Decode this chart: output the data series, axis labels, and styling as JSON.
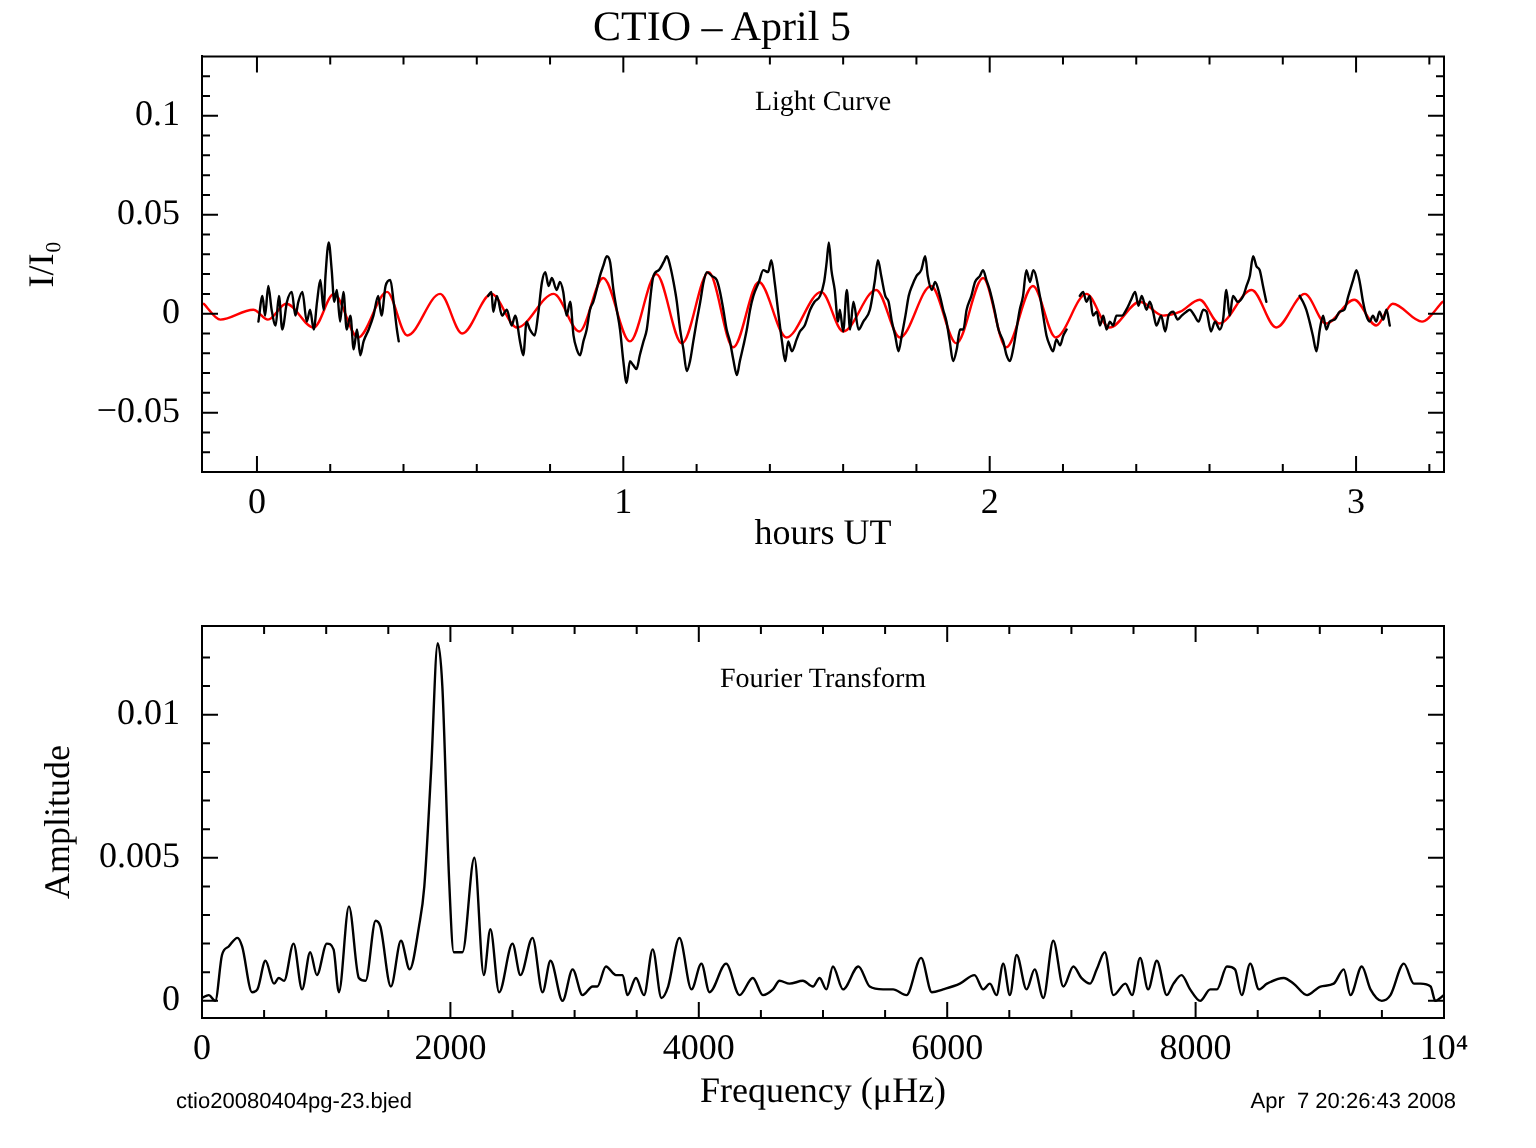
{
  "chart_data": [
    {
      "type": "line",
      "title": "CTIO – April 5",
      "xlabel": "hours UT",
      "ylabel": "I/I₀",
      "annotations": [
        "Light Curve"
      ],
      "xlim": [
        -0.15,
        3.24
      ],
      "ylim": [
        -0.08,
        0.13
      ],
      "xticks": [
        0,
        {
          "value": 0.2,
          "label": null
        },
        {
          "value": 0.4,
          "label": null
        },
        {
          "value": 0.6,
          "label": null
        },
        {
          "value": 0.8,
          "label": null
        },
        1,
        {
          "value": 1.2,
          "label": null
        },
        {
          "value": 1.4,
          "label": null
        },
        {
          "value": 1.6,
          "label": null
        },
        {
          "value": 1.8,
          "label": null
        },
        2,
        {
          "value": 2.2,
          "label": null
        },
        {
          "value": 2.4,
          "label": null
        },
        {
          "value": 2.6,
          "label": null
        },
        {
          "value": 2.8,
          "label": null
        },
        3,
        {
          "value": 3.2,
          "label": null
        }
      ],
      "yticks": [
        {
          "value": -0.07,
          "label": null
        },
        {
          "value": -0.06,
          "label": null
        },
        -0.05,
        {
          "value": -0.04,
          "label": null
        },
        {
          "value": -0.03,
          "label": null
        },
        {
          "value": -0.02,
          "label": null
        },
        {
          "value": -0.01,
          "label": null
        },
        0,
        {
          "value": 0.01,
          "label": null
        },
        {
          "value": 0.02,
          "label": null
        },
        {
          "value": 0.03,
          "label": null
        },
        {
          "value": 0.04,
          "label": null
        },
        0.05,
        {
          "value": 0.06,
          "label": null
        },
        {
          "value": 0.07,
          "label": null
        },
        {
          "value": 0.08,
          "label": null
        },
        {
          "value": 0.09,
          "label": null
        },
        0.1,
        {
          "value": 0.11,
          "label": null
        },
        {
          "value": 0.12,
          "label": null
        }
      ],
      "series": [
        {
          "color": "#000000",
          "x": [
            0.004,
            0.015,
            0.022,
            0.031,
            0.04,
            0.051,
            0.06,
            0.069,
            0.082,
            0.095,
            0.105,
            0.113,
            0.124,
            0.136,
            0.145,
            0.155,
            0.164,
            0.173,
            0.182,
            0.187,
            0.196,
            0.204,
            0.211,
            0.218,
            0.227,
            0.236,
            0.245,
            0.255,
            0.264,
            0.273,
            0.282,
            0.291,
            0.305,
            0.318,
            0.331,
            0.34,
            0.351,
            0.364,
            0.373,
            0.382,
            0.387,
            0.5,
            0.631,
            0.64,
            0.645,
            0.655,
            0.669,
            0.682,
            0.695,
            0.705,
            0.718,
            0.727,
            0.736,
            0.745,
            0.758,
            0.767,
            0.778,
            0.787,
            0.796,
            0.805,
            0.818,
            0.827,
            0.836,
            0.845,
            0.855,
            0.864,
            0.873,
            0.882,
            0.891,
            0.9,
            0.909,
            0.918,
            0.927,
            0.936,
            0.945,
            0.955,
            0.964,
            0.973,
            0.982,
            0.991,
            1.0,
            1.009,
            1.018,
            1.027,
            1.036,
            1.045,
            1.055,
            1.064,
            1.082,
            1.097,
            1.11,
            1.119,
            1.128,
            1.137,
            1.146,
            1.155,
            1.164,
            1.173,
            1.182,
            1.191,
            1.2,
            1.21,
            1.219,
            1.228,
            1.242,
            1.255,
            1.264,
            1.273,
            1.282,
            1.291,
            1.3,
            1.31,
            1.318,
            1.328,
            1.337,
            1.346,
            1.355,
            1.37,
            1.382,
            1.395,
            1.404,
            1.413,
            1.424,
            1.433,
            1.442,
            1.45,
            1.46,
            1.473,
            1.482,
            1.495,
            1.51,
            1.522,
            1.537,
            1.548,
            1.555,
            1.561,
            1.568,
            1.577,
            1.586,
            1.591,
            1.6,
            1.61,
            1.619,
            1.628,
            1.642,
            1.655,
            1.673,
            1.686,
            1.695,
            1.704,
            1.715,
            1.724,
            1.733,
            1.742,
            1.751,
            1.76,
            1.77,
            1.779,
            1.788,
            1.8,
            1.813,
            1.824,
            1.831,
            1.842,
            1.851,
            1.864,
            1.873,
            1.882,
            1.891,
            1.9,
            1.91,
            1.919,
            1.928,
            1.937,
            1.95,
            1.96,
            1.973,
            1.982,
            1.991,
            2.0,
            2.013,
            2.024,
            2.037,
            2.046,
            2.055,
            2.064,
            2.073,
            2.082,
            2.091,
            2.1,
            2.11,
            2.119,
            2.137,
            2.146,
            2.155,
            2.164,
            2.173,
            2.182,
            2.192,
            2.201,
            2.21,
            2.228,
            2.246,
            2.255,
            2.264,
            2.273,
            2.282,
            2.292,
            2.301,
            2.31,
            2.319,
            2.328,
            2.337,
            2.346,
            2.361,
            2.373,
            2.386,
            2.397,
            2.406,
            2.415,
            2.428,
            2.437,
            2.446,
            2.455,
            2.468,
            2.479,
            2.488,
            2.501,
            2.513,
            2.524,
            2.537,
            2.546,
            2.559,
            2.57,
            2.583,
            2.592,
            2.604,
            2.615,
            2.628,
            2.637,
            2.646,
            2.655,
            2.664,
            2.677,
            2.692,
            2.701,
            2.71,
            2.719,
            2.728,
            2.737,
            2.746,
            2.755,
            2.8,
            2.846,
            2.855,
            2.864,
            2.873,
            2.882,
            2.892,
            2.901,
            2.91,
            2.919,
            2.928,
            2.942,
            2.955,
            2.968,
            2.979,
            2.992,
            3.001,
            3.01,
            3.019,
            3.028,
            3.037,
            3.046,
            3.055,
            3.064,
            3.074,
            3.083,
            3.092
          ],
          "values": [
            -0.004,
            0.009,
            -0.001,
            0.014,
            0.002,
            -0.006,
            0.009,
            -0.008,
            0.006,
            0.011,
            -0.001,
            0.006,
            0.011,
            -0.004,
            0.002,
            -0.008,
            0.006,
            0.017,
            0.002,
            0.019,
            0.036,
            0.022,
            0.006,
            0.012,
            -0.004,
            0.011,
            -0.008,
            -0.001,
            -0.018,
            -0.008,
            -0.021,
            -0.014,
            -0.008,
            -0.001,
            0.009,
            -0.001,
            0.014,
            0.017,
            0.006,
            -0.008,
            -0.014,
            null,
            0.009,
            0.011,
            0.001,
            0.009,
            -0.001,
            0.002,
            -0.006,
            -0.001,
            -0.014,
            -0.021,
            -0.004,
            -0.008,
            -0.011,
            -0.001,
            0.016,
            0.021,
            0.014,
            0.018,
            0.012,
            0.016,
            0.011,
            -0.001,
            0.006,
            -0.011,
            -0.018,
            -0.021,
            -0.014,
            -0.008,
            0.002,
            0.006,
            0.012,
            0.019,
            0.024,
            0.029,
            0.026,
            0.012,
            0.002,
            -0.008,
            -0.024,
            -0.035,
            -0.024,
            -0.026,
            -0.028,
            -0.021,
            -0.014,
            -0.008,
            0.019,
            0.022,
            0.026,
            0.029,
            0.024,
            0.016,
            0.006,
            -0.008,
            -0.018,
            -0.029,
            -0.024,
            -0.014,
            -0.004,
            0.006,
            0.016,
            0.021,
            0.019,
            0.017,
            0.011,
            0.002,
            -0.008,
            -0.014,
            -0.023,
            -0.031,
            -0.024,
            -0.016,
            -0.008,
            0.002,
            0.009,
            0.016,
            0.022,
            0.021,
            0.027,
            0.016,
            -0.001,
            -0.014,
            -0.024,
            -0.014,
            -0.019,
            -0.013,
            -0.009,
            -0.006,
            0.002,
            0.006,
            0.009,
            0.016,
            0.026,
            0.036,
            0.022,
            0.012,
            -0.004,
            0.002,
            -0.009,
            0.012,
            -0.008,
            0.006,
            -0.008,
            -0.004,
            0.002,
            0.016,
            0.027,
            0.019,
            0.009,
            0.006,
            -0.004,
            -0.011,
            -0.019,
            -0.011,
            -0.001,
            0.009,
            0.014,
            0.019,
            0.022,
            0.029,
            0.019,
            0.012,
            0.016,
            0.009,
            0.002,
            -0.004,
            -0.014,
            -0.024,
            -0.018,
            -0.008,
            -0.008,
            0.002,
            0.009,
            0.016,
            0.019,
            0.022,
            0.017,
            0.012,
            0.002,
            -0.008,
            -0.014,
            -0.021,
            -0.024,
            -0.018,
            -0.008,
            0.002,
            0.009,
            0.022,
            0.016,
            0.022,
            0.009,
            -0.001,
            -0.011,
            -0.016,
            -0.019,
            -0.013,
            -0.016,
            -0.011,
            -0.008,
            null,
            0.009,
            0.011,
            0.006,
            0.009,
            -0.001,
            0.001,
            -0.006,
            -0.001,
            -0.008,
            -0.004,
            -0.006,
            -0.001,
            -0.001,
            0.002,
            0.007,
            0.011,
            0.004,
            0.009,
            0.002,
            0.006,
            0.001,
            -0.006,
            -0.001,
            -0.009,
            -0.001,
            0.001,
            -0.003,
            -0.001,
            0.001,
            0.002,
            -0.001,
            -0.004,
            0.002,
            0.001,
            -0.009,
            -0.004,
            -0.008,
            -0.003,
            0.012,
            -0.001,
            0.009,
            0.006,
            0.009,
            0.014,
            0.019,
            0.029,
            0.024,
            0.022,
            0.014,
            0.006,
            null,
            0.009,
            0.006,
            0.002,
            -0.004,
            -0.011,
            -0.019,
            -0.008,
            -0.001,
            -0.008,
            -0.004,
            -0.003,
            0.001,
            0.002,
            0.009,
            0.017,
            0.022,
            0.016,
            0.006,
            -0.001,
            -0.004,
            -0.001,
            -0.004,
            0.001,
            -0.003,
            0.002,
            -0.006
          ]
        },
        {
          "color": "#ff0000",
          "x": [
            -0.145,
            -0.1,
            -0.01,
            0.03,
            0.08,
            0.155,
            0.21,
            0.276,
            0.355,
            0.41,
            0.5,
            0.56,
            0.64,
            0.71,
            0.81,
            0.88,
            0.945,
            1.018,
            1.09,
            1.16,
            1.233,
            1.3,
            1.37,
            1.445,
            1.54,
            1.6,
            1.69,
            1.755,
            1.84,
            1.909,
            1.982,
            2.045,
            2.118,
            2.18,
            2.264,
            2.327,
            2.41,
            2.473,
            2.52,
            2.573,
            2.627,
            2.715,
            2.782,
            2.86,
            2.918,
            2.995,
            3.055,
            3.1,
            3.18,
            3.236
          ],
          "values": [
            0.005,
            -0.003,
            0.002,
            -0.003,
            0.005,
            -0.007,
            0.01,
            -0.012,
            0.011,
            -0.011,
            0.01,
            -0.01,
            0.01,
            -0.007,
            0.01,
            -0.009,
            0.018,
            -0.014,
            0.02,
            -0.015,
            0.021,
            -0.017,
            0.016,
            -0.012,
            0.011,
            -0.009,
            0.012,
            -0.012,
            0.014,
            -0.015,
            0.018,
            -0.017,
            0.014,
            -0.012,
            0.01,
            -0.007,
            0.006,
            -0.001,
            0.001,
            0.007,
            -0.005,
            0.012,
            -0.007,
            0.01,
            -0.005,
            0.007,
            -0.006,
            0.005,
            -0.004,
            0.006
          ]
        }
      ]
    },
    {
      "type": "line",
      "xlabel": "Frequency (μHz)",
      "ylabel": "Amplitude",
      "annotations": [
        "Fourier Transform",
        "ctio20080404pg-23.bjed",
        "Apr  7 20:26:43 2008"
      ],
      "xlim": [
        0,
        10000
      ],
      "ylim": [
        -0.0006,
        0.0131
      ],
      "xticks": [
        0,
        {
          "value": 500,
          "label": null
        },
        {
          "value": 1000,
          "label": null
        },
        {
          "value": 1500,
          "label": null
        },
        2000,
        {
          "value": 2500,
          "label": null
        },
        {
          "value": 3000,
          "label": null
        },
        {
          "value": 3500,
          "label": null
        },
        4000,
        {
          "value": 4500,
          "label": null
        },
        {
          "value": 5000,
          "label": null
        },
        {
          "value": 5500,
          "label": null
        },
        6000,
        {
          "value": 6500,
          "label": null
        },
        {
          "value": 7000,
          "label": null
        },
        {
          "value": 7500,
          "label": null
        },
        8000,
        {
          "value": 8500,
          "label": null
        },
        {
          "value": 9000,
          "label": null
        },
        {
          "value": 9500,
          "label": null
        },
        {
          "value": 10000,
          "label": "10⁴"
        }
      ],
      "yticks": [
        0,
        {
          "value": 0.001,
          "label": null
        },
        {
          "value": 0.002,
          "label": null
        },
        {
          "value": 0.003,
          "label": null
        },
        {
          "value": 0.004,
          "label": null
        },
        0.005,
        {
          "value": 0.006,
          "label": null
        },
        {
          "value": 0.007,
          "label": null
        },
        {
          "value": 0.008,
          "label": null
        },
        {
          "value": 0.009,
          "label": null
        },
        0.01,
        {
          "value": 0.011,
          "label": null
        },
        {
          "value": 0.012,
          "label": null
        }
      ],
      "color": "#000000",
      "x": [
        0,
        54,
        107,
        161,
        215,
        285,
        323,
        403,
        446,
        511,
        580,
        618,
        661,
        737,
        806,
        871,
        925,
        1005,
        1059,
        1102,
        1183,
        1263,
        1317,
        1398,
        1436,
        1521,
        1602,
        1672,
        1747,
        1790,
        1844,
        1898,
        1935,
        1989,
        2027,
        2097,
        2193,
        2269,
        2322,
        2392,
        2500,
        2564,
        2661,
        2742,
        2806,
        2903,
        2984,
        3064,
        3145,
        3183,
        3252,
        3333,
        3387,
        3425,
        3494,
        3559,
        3629,
        3699,
        3753,
        3844,
        3941,
        4021,
        4086,
        4220,
        4328,
        4435,
        4516,
        4597,
        4650,
        4731,
        4838,
        4919,
        4973,
        5027,
        5080,
        5161,
        5285,
        5376,
        5484,
        5564,
        5672,
        5790,
        5876,
        5967,
        6102,
        6220,
        6290,
        6344,
        6397,
        6451,
        6505,
        6559,
        6639,
        6704,
        6774,
        6854,
        6935,
        7016,
        7080,
        7150,
        7204,
        7269,
        7338,
        7435,
        7489,
        7553,
        7618,
        7688,
        7768,
        7822,
        7887,
        7956,
        8037,
        8118,
        8172,
        8252,
        8317,
        8371,
        8440,
        8510,
        8575,
        8709,
        8790,
        8897,
        9005,
        9112,
        9193,
        9247,
        9338,
        9408,
        9499,
        9569,
        9677,
        9757,
        9811,
        9892,
        9930,
        10000
      ],
      "values": [
        0.0001,
        0.0002,
        0,
        0.0016,
        0.0019,
        0.0022,
        0.0019,
        0.0003,
        0.0004,
        0.0014,
        0.0006,
        0.0008,
        0.0007,
        0.002,
        0.0004,
        0.0017,
        0.0009,
        0.002,
        0.0018,
        0.0003,
        0.0033,
        0.0008,
        0.0007,
        0.0028,
        0.0026,
        0.0005,
        0.0021,
        0.0011,
        0.0026,
        0.004,
        0.008,
        0.0125,
        0.011,
        0.0043,
        0.0017,
        0.0017,
        0.005,
        0.0009,
        0.0025,
        0.0003,
        0.002,
        0.0009,
        0.0022,
        0.0003,
        0.0014,
        0,
        0.0011,
        0.0002,
        0.0005,
        0.0005,
        0.0012,
        0.0009,
        0.0009,
        0.0002,
        0.0008,
        0.0002,
        0.0018,
        0.0001,
        0.0005,
        0.0022,
        0.0004,
        0.0013,
        0.0003,
        0.0013,
        0.0002,
        0.0008,
        0.0002,
        0.0004,
        0.0007,
        0.0006,
        0.0007,
        0.0005,
        0.0008,
        0.0004,
        0.0012,
        0.0004,
        0.0012,
        0.0005,
        0.0004,
        0.0004,
        0.0002,
        0.0015,
        0.0003,
        0.0004,
        0.0006,
        0.0009,
        0.0004,
        0.0006,
        0.0002,
        0.0013,
        0.0002,
        0.0016,
        0.0004,
        0.0011,
        0.0001,
        0.0021,
        0.0005,
        0.0012,
        0.0008,
        0.0006,
        0.0011,
        0.0017,
        0.0002,
        0.0006,
        0.0002,
        0.0015,
        0.0004,
        0.0014,
        0.0002,
        0.0006,
        0.0009,
        0.0004,
        0,
        0.0004,
        0.0004,
        0.0012,
        0.0011,
        0.0002,
        0.0013,
        0.0004,
        0.0006,
        0.0008,
        0.0006,
        0.0002,
        0.0005,
        0.0006,
        0.0011,
        0.0002,
        0.0012,
        0.0004,
        0,
        0.0002,
        0.0013,
        0.0006,
        0.0006,
        0.0005,
        0,
        0.0002
      ]
    }
  ]
}
